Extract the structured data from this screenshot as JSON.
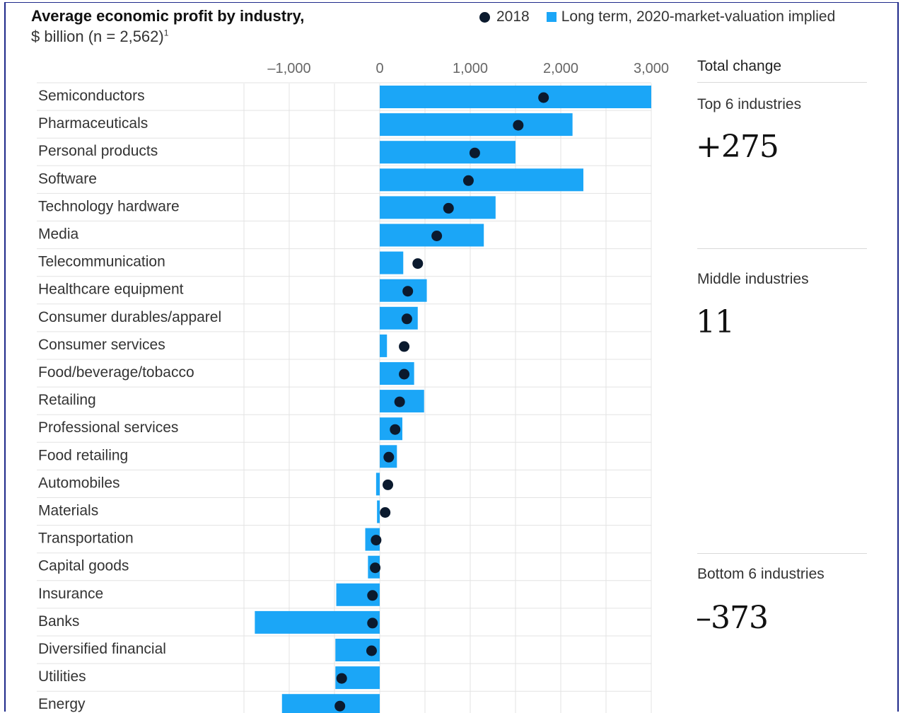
{
  "header": {
    "title": "Average economic profit by industry,",
    "subtitle": "$ billion (n = 2,562)",
    "footnote_mark": "1"
  },
  "legend": {
    "dot_label": "2018",
    "bar_label": "Long term, 2020-market-valuation implied"
  },
  "colors": {
    "bar": "#1ba6f7",
    "dot": "#0b1a2e",
    "grid": "#e3e3e3"
  },
  "chart_data": {
    "type": "bar",
    "orientation": "horizontal",
    "xlim": [
      -1500,
      3000
    ],
    "xticks": [
      {
        "value": -1000,
        "label": "–1,000"
      },
      {
        "value": 0,
        "label": "0"
      },
      {
        "value": 1000,
        "label": "1,000"
      },
      {
        "value": 2000,
        "label": "2,000"
      },
      {
        "value": 3000,
        "label": "3,000"
      }
    ],
    "grid": true,
    "legend_position": "top-right",
    "categories": [
      "Semiconductors",
      "Pharmaceuticals",
      "Personal products",
      "Software",
      "Technology hardware",
      "Media",
      "Telecommunication",
      "Healthcare equipment",
      "Consumer durables/apparel",
      "Consumer services",
      "Food/beverage/tobacco",
      "Retailing",
      "Professional services",
      "Food retailing",
      "Automobiles",
      "Materials",
      "Transportation",
      "Capital goods",
      "Insurance",
      "Banks",
      "Diversified financial",
      "Utilities",
      "Energy"
    ],
    "series": [
      {
        "name": "Long term, 2020-market-valuation implied",
        "values": [
          3000,
          2130,
          1500,
          2250,
          1280,
          1150,
          260,
          520,
          420,
          80,
          380,
          490,
          250,
          190,
          -40,
          -30,
          -160,
          -130,
          -480,
          -1380,
          -490,
          -490,
          -1080
        ]
      },
      {
        "name": "2018",
        "values": [
          1810,
          1530,
          1050,
          980,
          760,
          630,
          420,
          310,
          300,
          270,
          270,
          220,
          170,
          100,
          90,
          60,
          -40,
          -50,
          -80,
          -80,
          -90,
          -420,
          -440
        ]
      }
    ]
  },
  "total_change": {
    "heading": "Total change",
    "groups": [
      {
        "label": "Top 6 industries",
        "value": "+275"
      },
      {
        "label": "Middle industries",
        "value": "11"
      },
      {
        "label": "Bottom 6 industries",
        "value": "–373"
      }
    ]
  }
}
